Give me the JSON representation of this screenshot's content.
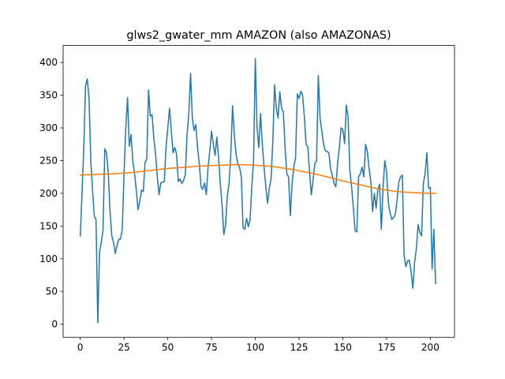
{
  "chart_data": {
    "type": "line",
    "title": "glws2_gwater_mm AMAZON (also AMAZONAS)",
    "xlabel": "",
    "ylabel": "",
    "xlim": [
      -9.8,
      213.8
    ],
    "ylim": [
      -20,
      426
    ],
    "xticks": [
      0,
      25,
      50,
      75,
      100,
      125,
      150,
      175,
      200
    ],
    "yticks": [
      0,
      50,
      100,
      150,
      200,
      250,
      300,
      350,
      400
    ],
    "grid": false,
    "series": [
      {
        "color": "#1f77b4",
        "x": [
          0,
          1,
          2,
          3,
          4,
          5,
          6,
          7,
          8,
          9,
          10,
          11,
          12,
          13,
          14,
          15,
          16,
          17,
          18,
          19,
          20,
          21,
          22,
          23,
          24,
          25,
          26,
          27,
          28,
          29,
          30,
          31,
          32,
          33,
          34,
          35,
          36,
          37,
          38,
          39,
          40,
          41,
          42,
          43,
          44,
          45,
          46,
          47,
          48,
          49,
          50,
          51,
          52,
          53,
          54,
          55,
          56,
          57,
          58,
          59,
          60,
          61,
          62,
          63,
          64,
          65,
          66,
          67,
          68,
          69,
          70,
          71,
          72,
          73,
          74,
          75,
          76,
          77,
          78,
          79,
          80,
          81,
          82,
          83,
          84,
          85,
          86,
          87,
          88,
          89,
          90,
          91,
          92,
          93,
          94,
          95,
          96,
          97,
          98,
          99,
          100,
          101,
          102,
          103,
          104,
          105,
          106,
          107,
          108,
          109,
          110,
          111,
          112,
          113,
          114,
          115,
          116,
          117,
          118,
          119,
          120,
          121,
          122,
          123,
          124,
          125,
          126,
          127,
          128,
          129,
          130,
          131,
          132,
          133,
          134,
          135,
          136,
          137,
          138,
          139,
          140,
          141,
          142,
          143,
          144,
          145,
          146,
          147,
          148,
          149,
          150,
          151,
          152,
          153,
          154,
          155,
          156,
          157,
          158,
          159,
          160,
          161,
          162,
          163,
          164,
          165,
          166,
          167,
          168,
          169,
          170,
          171,
          172,
          173,
          174,
          175,
          176,
          177,
          178,
          179,
          180,
          181,
          182,
          183,
          184,
          185,
          186,
          187,
          188,
          189,
          190,
          191,
          192,
          193,
          194,
          195,
          196,
          197,
          198,
          199,
          200,
          201,
          202,
          203
        ],
        "values": [
          135,
          200,
          270,
          365,
          375,
          345,
          250,
          205,
          165,
          160,
          2,
          110,
          125,
          145,
          268,
          262,
          230,
          172,
          135,
          125,
          108,
          120,
          130,
          130,
          145,
          230,
          300,
          346,
          272,
          290,
          250,
          230,
          205,
          175,
          188,
          205,
          203,
          247,
          253,
          358,
          318,
          320,
          285,
          260,
          225,
          198,
          216,
          217,
          218,
          270,
          300,
          330,
          296,
          262,
          270,
          260,
          218,
          222,
          215,
          220,
          228,
          290,
          322,
          383,
          316,
          296,
          305,
          270,
          245,
          210,
          206,
          216,
          198,
          240,
          265,
          295,
          275,
          258,
          286,
          255,
          215,
          182,
          137,
          152,
          195,
          215,
          260,
          334,
          290,
          260,
          245,
          240,
          225,
          148,
          145,
          162,
          149,
          160,
          210,
          250,
          406,
          300,
          270,
          322,
          275,
          240,
          210,
          185,
          208,
          222,
          280,
          366,
          330,
          315,
          355,
          330,
          325,
          270,
          230,
          225,
          166,
          215,
          240,
          255,
          352,
          345,
          356,
          350,
          318,
          275,
          271,
          232,
          198,
          220,
          245,
          250,
          380,
          315,
          295,
          275,
          265,
          264,
          262,
          238,
          227,
          215,
          210,
          245,
          270,
          300,
          298,
          276,
          335,
          316,
          236,
          210,
          178,
          143,
          141,
          225,
          230,
          240,
          225,
          275,
          264,
          238,
          218,
          172,
          200,
          177,
          205,
          214,
          145,
          210,
          250,
          233,
          185,
          170,
          160,
          163,
          168,
          190,
          218,
          225,
          228,
          105,
          88,
          97,
          98,
          80,
          55,
          95,
          115,
          152,
          140,
          135,
          215,
          230,
          262,
          208,
          209,
          84,
          145,
          62
        ]
      },
      {
        "color": "#ff7f0e",
        "x": [
          0,
          10,
          20,
          30,
          40,
          50,
          60,
          70,
          80,
          90,
          100,
          110,
          120,
          130,
          140,
          150,
          160,
          170,
          180,
          190,
          200,
          203
        ],
        "values": [
          228,
          229,
          230,
          232,
          235,
          238,
          240,
          242,
          243,
          244,
          243,
          241,
          237,
          232,
          226,
          219,
          213,
          207,
          203,
          201,
          200,
          200
        ]
      }
    ]
  }
}
